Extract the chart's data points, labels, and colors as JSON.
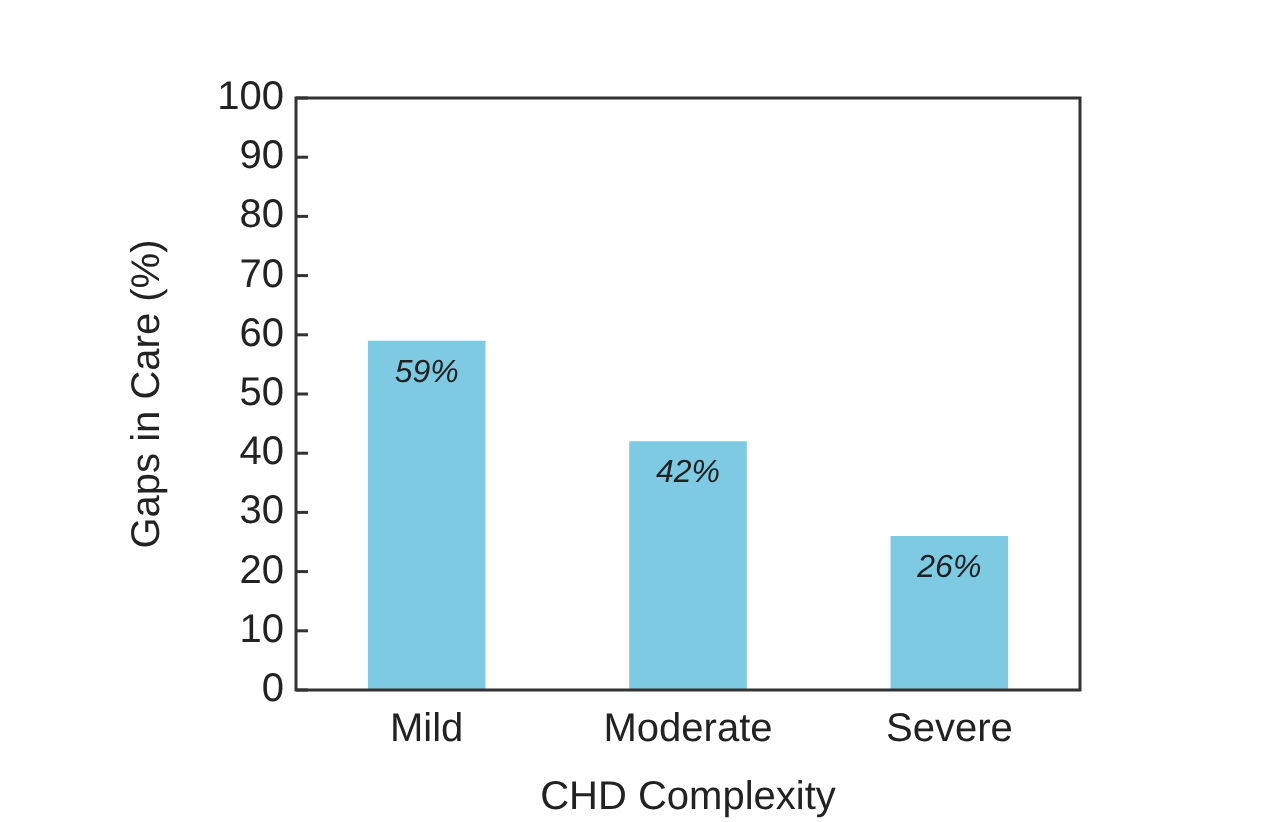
{
  "chart_data": {
    "type": "bar",
    "xlabel": "CHD Complexity",
    "ylabel": "Gaps in Care (%)",
    "categories": [
      "Mild",
      "Moderate",
      "Severe"
    ],
    "values": [
      59,
      42,
      26
    ],
    "value_labels": [
      "59%",
      "42%",
      "26%"
    ],
    "color": "#7ecae2",
    "ylim": [
      0,
      100
    ],
    "yticks": [
      0,
      10,
      20,
      30,
      40,
      50,
      60,
      70,
      80,
      90,
      100
    ],
    "grid": false,
    "legend": false
  }
}
